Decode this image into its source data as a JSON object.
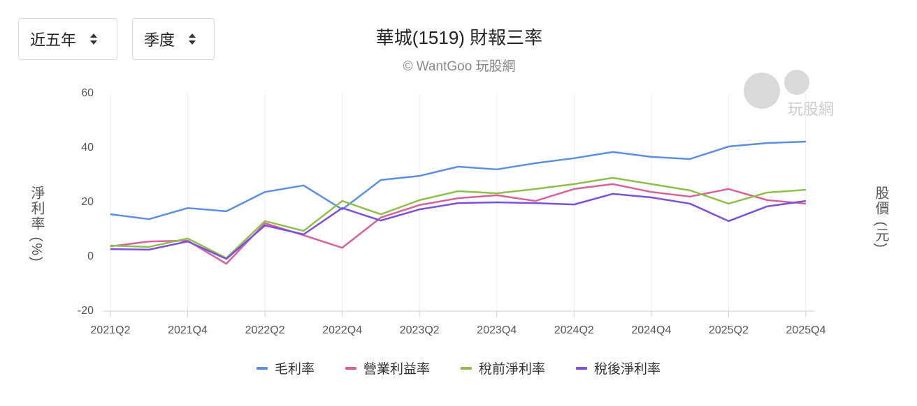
{
  "controls": {
    "range": "近五年",
    "period": "季度"
  },
  "chart_data": {
    "type": "line",
    "title": "華城(1519) 財報三率",
    "subtitle": "© WantGoo 玩股網",
    "watermark": "玩股網",
    "y_label": "淨利率 (%)",
    "y2_label": "股價 (元)",
    "categories": [
      "2021Q2",
      null,
      "2021Q4",
      null,
      "2022Q2",
      null,
      "2022Q4",
      null,
      "2023Q2",
      null,
      "2023Q4",
      null,
      "2024Q2",
      null,
      "2024Q4",
      null,
      "2025Q2",
      null,
      "2025Q4"
    ],
    "ylim": [
      -20,
      60
    ],
    "yticks": [
      -20,
      0,
      20,
      40,
      60
    ],
    "grid": "x",
    "legend": "bottom",
    "series": [
      {
        "name": "毛利率",
        "color": "#5b8ee6",
        "values": [
          15.6,
          13.8,
          17.9,
          16.7,
          23.8,
          26.2,
          17.4,
          28.2,
          29.7,
          33.1,
          32.1,
          34.4,
          36.2,
          38.5,
          36.7,
          35.9,
          40.5,
          41.8,
          42.3
        ]
      },
      {
        "name": "營業利益率",
        "color": "#d9619b",
        "values": [
          3.8,
          5.6,
          5.9,
          -2.6,
          12.3,
          7.9,
          3.3,
          14.4,
          19.0,
          21.5,
          22.6,
          20.5,
          24.9,
          26.7,
          23.8,
          22.1,
          24.9,
          20.8,
          19.5
        ]
      },
      {
        "name": "稅前淨利率",
        "color": "#8cc04a",
        "values": [
          4.1,
          3.6,
          6.7,
          -0.5,
          13.1,
          9.5,
          20.5,
          15.6,
          20.8,
          24.1,
          23.3,
          24.9,
          26.7,
          29.0,
          26.7,
          24.4,
          19.5,
          23.6,
          24.6
        ]
      },
      {
        "name": "稅後淨利率",
        "color": "#7b4fe0",
        "values": [
          2.8,
          2.6,
          5.6,
          -0.8,
          11.5,
          8.2,
          17.9,
          13.3,
          17.4,
          19.7,
          20.0,
          19.7,
          19.2,
          23.1,
          21.8,
          19.5,
          13.1,
          18.5,
          20.5
        ]
      }
    ]
  }
}
